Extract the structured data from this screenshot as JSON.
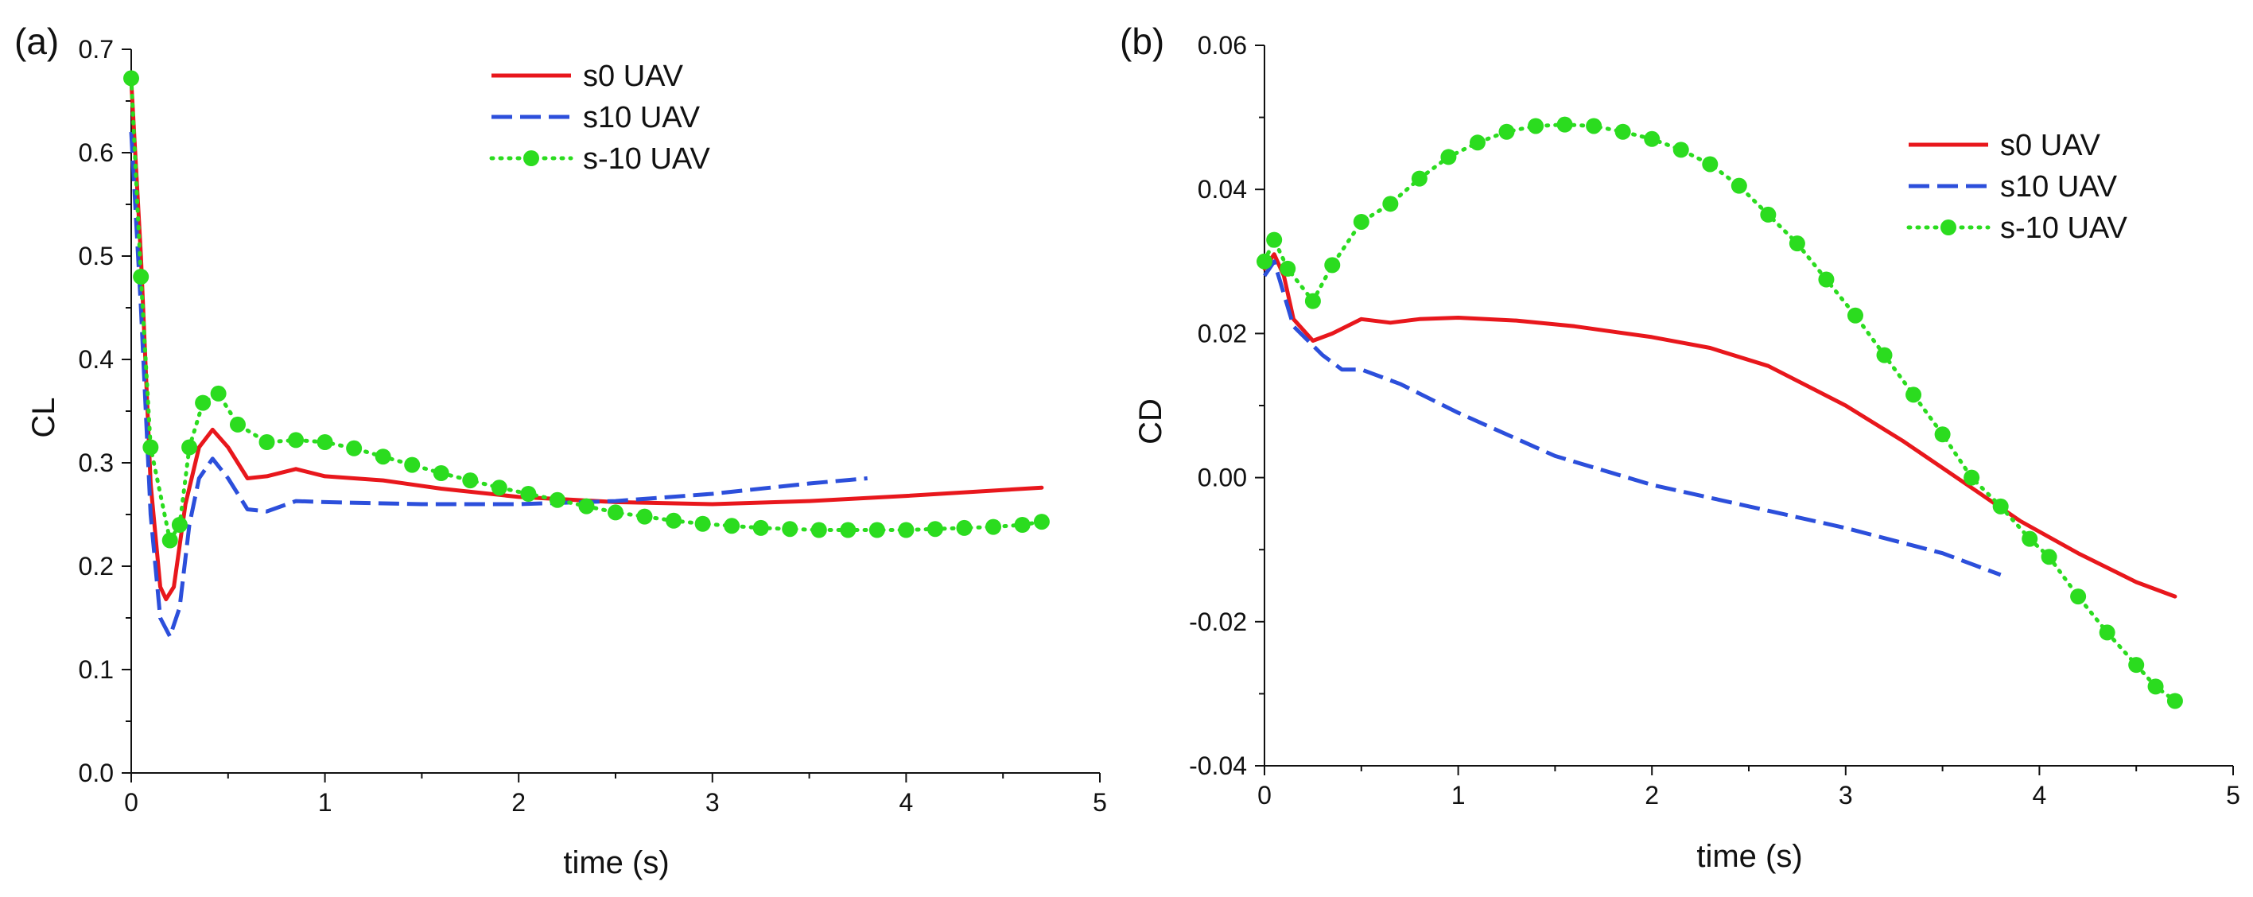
{
  "chart_data": [
    {
      "type": "line",
      "panel_label": "(a)",
      "xlabel": "time (s)",
      "ylabel": "CL",
      "xlim": [
        0,
        5
      ],
      "ylim": [
        0,
        0.7
      ],
      "x_ticks": [
        0,
        1,
        2,
        3,
        4,
        5
      ],
      "x_tick_labels": [
        "0",
        "1",
        "2",
        "3",
        "4",
        "5"
      ],
      "y_ticks": [
        0,
        0.1,
        0.2,
        0.3,
        0.4,
        0.5,
        0.6,
        0.7
      ],
      "y_tick_labels": [
        "0.0",
        "0.1",
        "0.2",
        "0.3",
        "0.4",
        "0.5",
        "0.6",
        "0.7"
      ],
      "legend_position": "top-right",
      "series": [
        {
          "name": "s0 UAV",
          "color": "#e8171c",
          "style": "solid",
          "x": [
            0,
            0.05,
            0.1,
            0.15,
            0.18,
            0.22,
            0.28,
            0.35,
            0.42,
            0.5,
            0.6,
            0.7,
            0.85,
            1.0,
            1.3,
            1.6,
            2.0,
            2.5,
            3.0,
            3.5,
            4.0,
            4.7
          ],
          "y": [
            0.67,
            0.5,
            0.28,
            0.18,
            0.168,
            0.18,
            0.26,
            0.315,
            0.332,
            0.315,
            0.285,
            0.287,
            0.294,
            0.287,
            0.283,
            0.275,
            0.267,
            0.262,
            0.26,
            0.263,
            0.268,
            0.276
          ]
        },
        {
          "name": "s10 UAV",
          "color": "#2c4fdb",
          "style": "dashed",
          "x": [
            0,
            0.05,
            0.1,
            0.15,
            0.2,
            0.25,
            0.3,
            0.35,
            0.42,
            0.5,
            0.6,
            0.7,
            0.85,
            1.0,
            1.5,
            2.0,
            2.5,
            3.0,
            3.5,
            3.8
          ],
          "y": [
            0.62,
            0.45,
            0.25,
            0.15,
            0.132,
            0.16,
            0.24,
            0.285,
            0.304,
            0.285,
            0.255,
            0.253,
            0.263,
            0.262,
            0.26,
            0.26,
            0.263,
            0.27,
            0.28,
            0.285
          ]
        },
        {
          "name": "s-10 UAV",
          "color": "#2bdc1f",
          "style": "dotted-circle",
          "x": [
            0,
            0.05,
            0.1,
            0.2,
            0.25,
            0.3,
            0.37,
            0.45,
            0.55,
            0.7,
            0.85,
            1.0,
            1.15,
            1.3,
            1.45,
            1.6,
            1.75,
            1.9,
            2.05,
            2.2,
            2.35,
            2.5,
            2.65,
            2.8,
            2.95,
            3.1,
            3.25,
            3.4,
            3.55,
            3.7,
            3.85,
            4.0,
            4.15,
            4.3,
            4.45,
            4.6,
            4.7
          ],
          "y": [
            0.672,
            0.48,
            0.315,
            0.225,
            0.24,
            0.315,
            0.358,
            0.367,
            0.337,
            0.32,
            0.322,
            0.32,
            0.314,
            0.306,
            0.298,
            0.29,
            0.283,
            0.276,
            0.27,
            0.264,
            0.258,
            0.252,
            0.248,
            0.244,
            0.241,
            0.239,
            0.237,
            0.236,
            0.235,
            0.235,
            0.235,
            0.235,
            0.236,
            0.237,
            0.238,
            0.24,
            0.243
          ]
        }
      ]
    },
    {
      "type": "line",
      "panel_label": "(b)",
      "xlabel": "time (s)",
      "ylabel": "CD",
      "xlim": [
        0,
        5
      ],
      "ylim": [
        -0.04,
        0.06
      ],
      "x_ticks": [
        0,
        1,
        2,
        3,
        4,
        5
      ],
      "x_tick_labels": [
        "0",
        "1",
        "2",
        "3",
        "4",
        "5"
      ],
      "y_ticks": [
        -0.04,
        -0.02,
        0.0,
        0.02,
        0.04,
        0.06
      ],
      "y_tick_labels": [
        "-0.04",
        "-0.02",
        "0.00",
        "0.02",
        "0.04",
        "0.06"
      ],
      "legend_position": "top-right",
      "series": [
        {
          "name": "s0 UAV",
          "color": "#e8171c",
          "style": "solid",
          "x": [
            0,
            0.05,
            0.1,
            0.15,
            0.25,
            0.35,
            0.5,
            0.65,
            0.8,
            1.0,
            1.3,
            1.6,
            2.0,
            2.3,
            2.6,
            3.0,
            3.3,
            3.6,
            3.9,
            4.2,
            4.5,
            4.7
          ],
          "y": [
            0.029,
            0.031,
            0.028,
            0.022,
            0.019,
            0.02,
            0.022,
            0.0215,
            0.022,
            0.0222,
            0.0218,
            0.021,
            0.0195,
            0.018,
            0.0155,
            0.01,
            0.005,
            -0.0005,
            -0.006,
            -0.0105,
            -0.0145,
            -0.0165
          ]
        },
        {
          "name": "s10 UAV",
          "color": "#2c4fdb",
          "style": "dashed",
          "x": [
            0,
            0.05,
            0.15,
            0.3,
            0.4,
            0.5,
            0.7,
            1.0,
            1.5,
            2.0,
            2.5,
            3.0,
            3.5,
            3.8
          ],
          "y": [
            0.028,
            0.03,
            0.021,
            0.017,
            0.015,
            0.015,
            0.013,
            0.009,
            0.003,
            -0.001,
            -0.004,
            -0.007,
            -0.0105,
            -0.0135
          ]
        },
        {
          "name": "s-10 UAV",
          "color": "#2bdc1f",
          "style": "dotted-circle",
          "x": [
            0,
            0.05,
            0.12,
            0.25,
            0.35,
            0.5,
            0.65,
            0.8,
            0.95,
            1.1,
            1.25,
            1.4,
            1.55,
            1.7,
            1.85,
            2.0,
            2.15,
            2.3,
            2.45,
            2.6,
            2.75,
            2.9,
            3.05,
            3.2,
            3.35,
            3.5,
            3.65,
            3.8,
            3.95,
            4.05,
            4.2,
            4.35,
            4.5,
            4.6,
            4.7
          ],
          "y": [
            0.03,
            0.033,
            0.029,
            0.0245,
            0.0295,
            0.0355,
            0.038,
            0.0415,
            0.0445,
            0.0465,
            0.048,
            0.0488,
            0.049,
            0.0488,
            0.048,
            0.047,
            0.0455,
            0.0435,
            0.0405,
            0.0365,
            0.0325,
            0.0275,
            0.0225,
            0.017,
            0.0115,
            0.006,
            0.0,
            -0.004,
            -0.0085,
            -0.011,
            -0.0165,
            -0.0215,
            -0.026,
            -0.029,
            -0.031
          ]
        }
      ]
    }
  ]
}
